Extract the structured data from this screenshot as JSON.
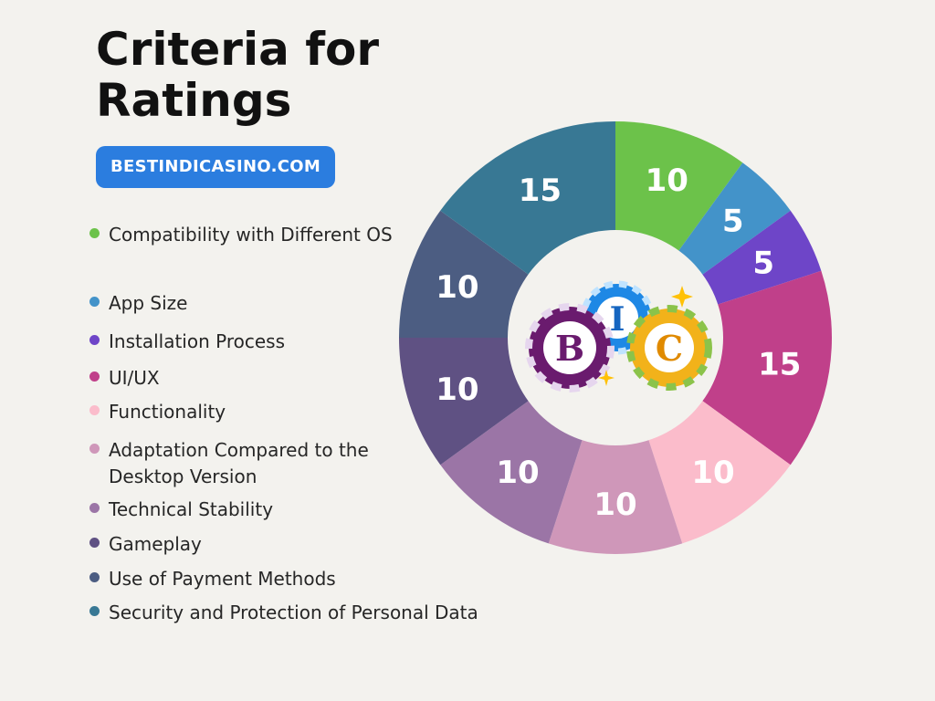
{
  "header": {
    "title": "Criteria for Ratings",
    "badge": "BESTINDICASINO.COM"
  },
  "colors": {
    "background": "#f3f2ee",
    "badge": "#2b7ddf"
  },
  "logo": {
    "letters": [
      "B",
      "I",
      "C"
    ]
  },
  "chart_data": {
    "type": "pie",
    "donut": true,
    "title": "Criteria for Ratings",
    "slices": [
      {
        "label": "Compatibility with Different OS",
        "value": 10,
        "color": "#6cc24a"
      },
      {
        "label": "App Size",
        "value": 5,
        "color": "#4393c9"
      },
      {
        "label": "Installation Process",
        "value": 5,
        "color": "#6e45c8"
      },
      {
        "label": "UI/UX",
        "value": 15,
        "color": "#c0408a"
      },
      {
        "label": "Functionality",
        "value": 10,
        "color": "#fbbccb"
      },
      {
        "label": "Adaptation Compared to the Desktop Version",
        "value": 10,
        "color": "#cf97b9"
      },
      {
        "label": "Technical Stability",
        "value": 10,
        "color": "#9b75a6"
      },
      {
        "label": "Gameplay",
        "value": 10,
        "color": "#5f5183"
      },
      {
        "label": "Use of Payment Methods",
        "value": 10,
        "color": "#4c5d82"
      },
      {
        "label": "Security and Protection of Personal Data",
        "value": 15,
        "color": "#387894"
      }
    ]
  }
}
